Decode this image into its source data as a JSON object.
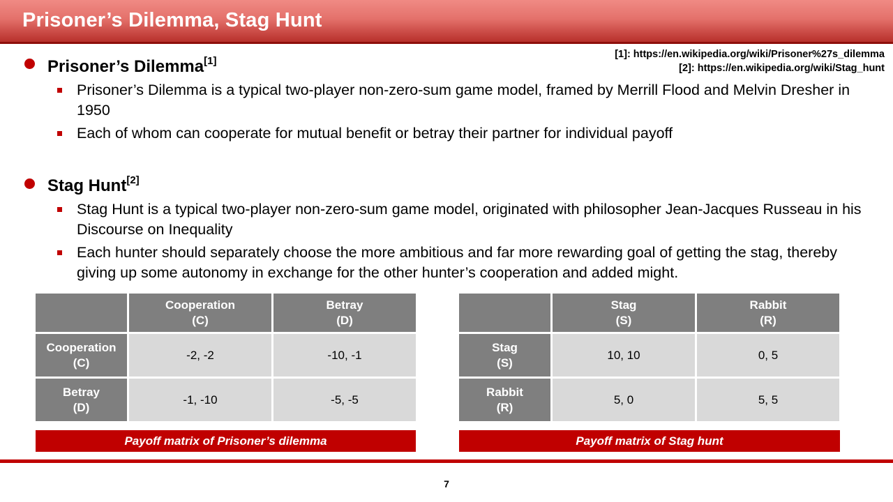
{
  "slide": {
    "title": "Prisoner’s Dilemma, Stag Hunt",
    "page_number": "7"
  },
  "references": {
    "ref1": "[1]: https://en.wikipedia.org/wiki/Prisoner%27s_dilemma",
    "ref2": "[2]: https://en.wikipedia.org/wiki/Stag_hunt"
  },
  "sections": [
    {
      "heading": "Prisoner’s Dilemma",
      "sup": "[1]",
      "points": [
        " Prisoner’s Dilemma is a typical two-player non-zero-sum game model, framed by Merrill Flood and Melvin Dresher in 1950",
        "Each of whom can cooperate for mutual benefit or betray their partner for individual payoff"
      ]
    },
    {
      "heading": "Stag Hunt",
      "sup": "[2]",
      "points": [
        " Stag Hunt is a typical two-player non-zero-sum game model, originated with philosopher Jean-Jacques Russeau in his Discourse on Inequality",
        " Each hunter should separately choose the more ambitious and far more rewarding goal of getting the stag, thereby giving up some autonomy in exchange for the other hunter’s cooperation and added might."
      ]
    }
  ],
  "tables": {
    "pd": {
      "col_headers": [
        "Cooperation\n(C)",
        "Betray\n(D)"
      ],
      "rows": [
        {
          "header": "Cooperation\n(C)",
          "cells": [
            "-2, -2",
            "-10, -1"
          ]
        },
        {
          "header": "Betray\n(D)",
          "cells": [
            "-1, -10",
            "-5, -5"
          ]
        }
      ],
      "caption": "Payoff matrix of Prisoner’s dilemma"
    },
    "sh": {
      "col_headers": [
        "Stag\n(S)",
        "Rabbit\n(R)"
      ],
      "rows": [
        {
          "header": "Stag\n(S)",
          "cells": [
            "10, 10",
            "0, 5"
          ]
        },
        {
          "header": "Rabbit\n(R)",
          "cells": [
            "5, 0",
            "5, 5"
          ]
        }
      ],
      "caption": "Payoff matrix of Stag hunt"
    }
  },
  "colors": {
    "accent_red": "#c00000",
    "header_gray": "#7f7f7f",
    "cell_gray": "#d9d9d9"
  }
}
